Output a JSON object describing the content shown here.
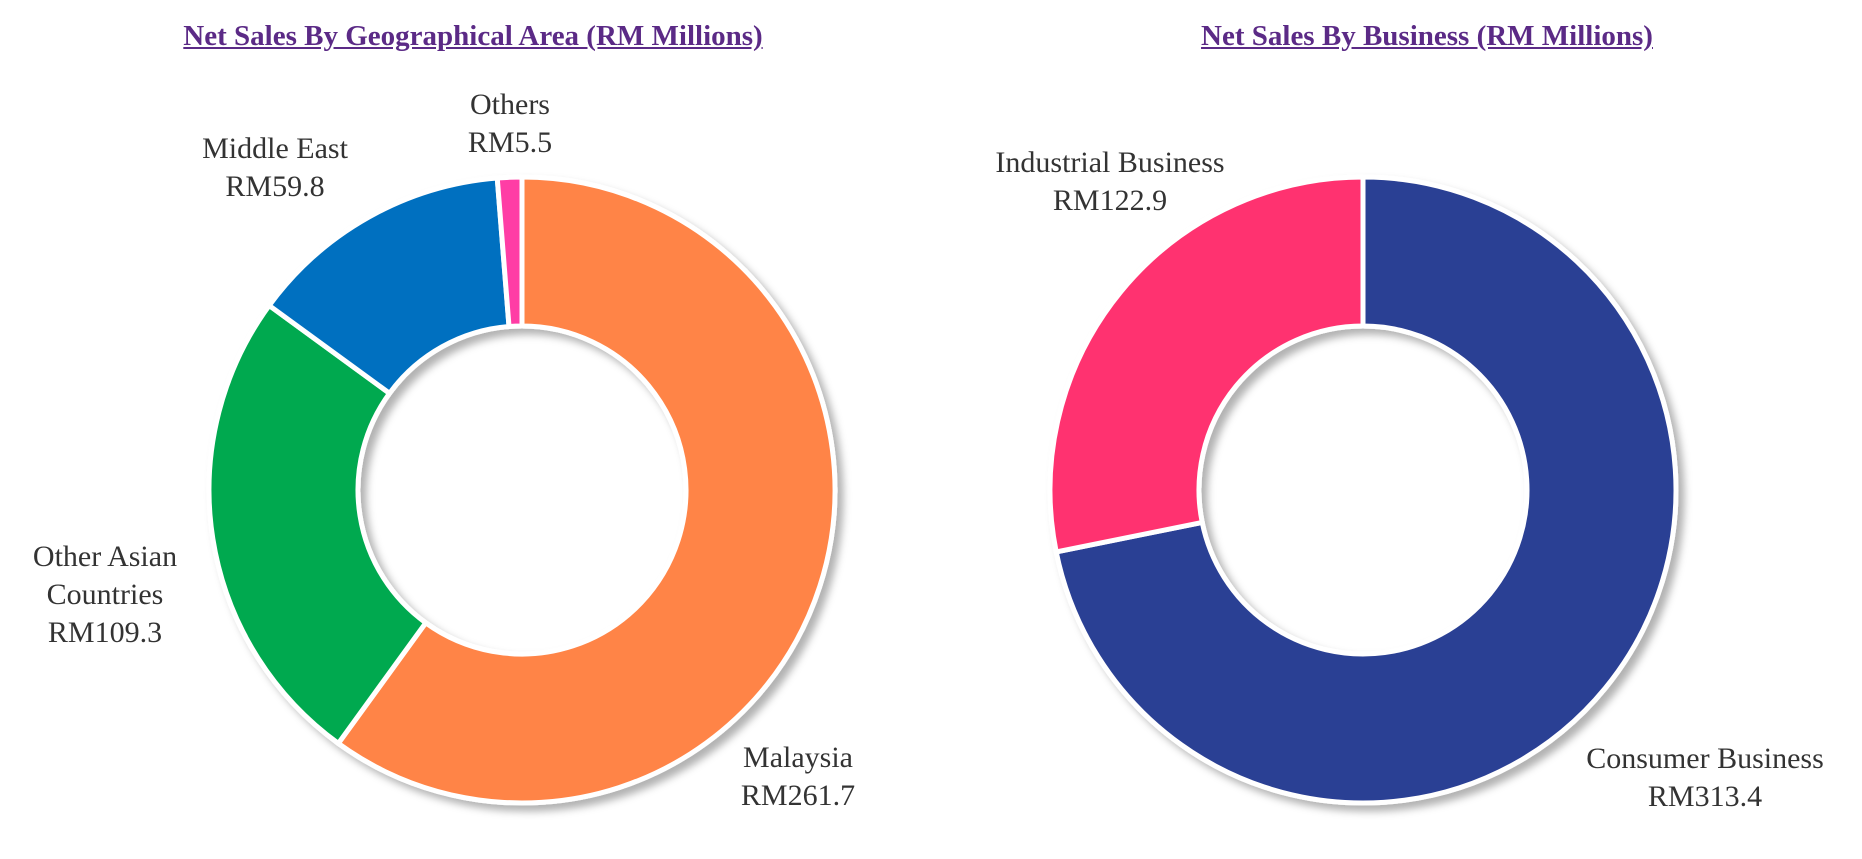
{
  "chart_data": [
    {
      "type": "pie",
      "title": "Net Sales By Geographical Area (RM Millions)",
      "categories": [
        "Malaysia",
        "Other Asian Countries",
        "Middle East",
        "Others"
      ],
      "values": [
        261.7,
        109.3,
        59.8,
        5.5
      ],
      "value_labels": [
        "RM261.7",
        "RM109.3",
        "RM59.8",
        "RM5.5"
      ],
      "colors": [
        "#ff8447",
        "#00a94f",
        "#0070c0",
        "#ff3ea5"
      ]
    },
    {
      "type": "pie",
      "title": "Net Sales By Business (RM Millions)",
      "categories": [
        "Consumer Business",
        "Industrial Business"
      ],
      "values": [
        313.4,
        122.9
      ],
      "value_labels": [
        "RM313.4",
        "RM122.9"
      ],
      "colors": [
        "#2b3f94",
        "#ff3370"
      ]
    }
  ]
}
